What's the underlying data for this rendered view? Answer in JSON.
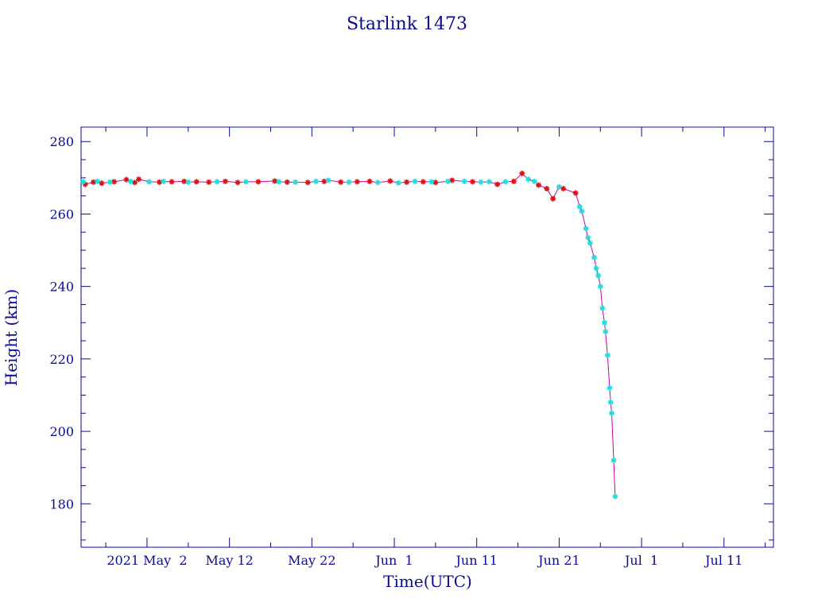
{
  "chart_data": {
    "type": "scatter",
    "title": "Starlink 1473",
    "xlabel": "Time(UTC)",
    "ylabel": "Height (km)",
    "xlim": [
      "2021-04-24",
      "2021-07-17"
    ],
    "ylim": [
      168,
      284
    ],
    "yticks": [
      180,
      200,
      220,
      240,
      260,
      280
    ],
    "xticks": [
      {
        "date": "2021-05-02",
        "label": "2021 May  2"
      },
      {
        "date": "2021-05-12",
        "label": "May 12"
      },
      {
        "date": "2021-05-22",
        "label": "May 22"
      },
      {
        "date": "2021-06-01",
        "label": "Jun  1"
      },
      {
        "date": "2021-06-11",
        "label": "Jun 11"
      },
      {
        "date": "2021-06-21",
        "label": "Jun 21"
      },
      {
        "date": "2021-07-01",
        "label": "Jul  1"
      },
      {
        "date": "2021-07-11",
        "label": "Jul 11"
      }
    ],
    "grid": false,
    "colors": {
      "axes": "#0a0a96",
      "line": "#cc00aa",
      "series_a": "#dd1111",
      "series_b": "#22dddd"
    },
    "series": [
      {
        "marker": "red-asterisk",
        "points": [
          [
            "2021-04-24T12:00",
            268.2
          ],
          [
            "2021-04-25T12:00",
            268.8
          ],
          [
            "2021-04-26T12:00",
            268.5
          ],
          [
            "2021-04-28T00:00",
            268.9
          ],
          [
            "2021-04-29T12:00",
            269.5
          ],
          [
            "2021-04-30T12:00",
            268.7
          ],
          [
            "2021-05-01T00:00",
            269.6
          ],
          [
            "2021-05-03T12:00",
            268.8
          ],
          [
            "2021-05-05T00:00",
            268.9
          ],
          [
            "2021-05-06T12:00",
            269.0
          ],
          [
            "2021-05-08T00:00",
            268.9
          ],
          [
            "2021-05-09T12:00",
            268.8
          ],
          [
            "2021-05-11T12:00",
            269.0
          ],
          [
            "2021-05-13T00:00",
            268.7
          ],
          [
            "2021-05-15T12:00",
            268.9
          ],
          [
            "2021-05-17T12:00",
            269.1
          ],
          [
            "2021-05-19T00:00",
            268.8
          ],
          [
            "2021-05-21T12:00",
            268.7
          ],
          [
            "2021-05-23T12:00",
            269.0
          ],
          [
            "2021-05-25T12:00",
            268.8
          ],
          [
            "2021-05-27T12:00",
            268.9
          ],
          [
            "2021-05-29T00:00",
            269.0
          ],
          [
            "2021-05-31T12:00",
            269.1
          ],
          [
            "2021-06-02T12:00",
            268.8
          ],
          [
            "2021-06-04T12:00",
            268.9
          ],
          [
            "2021-06-06T00:00",
            268.7
          ],
          [
            "2021-06-08T00:00",
            269.3
          ],
          [
            "2021-06-10T12:00",
            268.9
          ],
          [
            "2021-06-13T12:00",
            268.2
          ],
          [
            "2021-06-15T12:00",
            269.0
          ],
          [
            "2021-06-16T12:00",
            271.2
          ],
          [
            "2021-06-18T12:00",
            268.0
          ],
          [
            "2021-06-19T12:00",
            267.0
          ],
          [
            "2021-06-20T06:00",
            264.2
          ],
          [
            "2021-06-21T12:00",
            267.0
          ],
          [
            "2021-06-23T00:00",
            265.8
          ]
        ]
      },
      {
        "marker": "cyan-star",
        "points": [
          [
            "2021-04-24T06:00",
            268.9
          ],
          [
            "2021-04-26T00:00",
            269.0
          ],
          [
            "2021-04-27T12:00",
            268.8
          ],
          [
            "2021-04-30T00:00",
            269.0
          ],
          [
            "2021-05-02T06:00",
            268.9
          ],
          [
            "2021-05-04T00:00",
            269.0
          ],
          [
            "2021-05-07T00:00",
            268.8
          ],
          [
            "2021-05-10T12:00",
            268.9
          ],
          [
            "2021-05-14T00:00",
            268.9
          ],
          [
            "2021-05-18T00:00",
            268.9
          ],
          [
            "2021-05-20T00:00",
            268.8
          ],
          [
            "2021-05-22T12:00",
            269.0
          ],
          [
            "2021-05-24T00:00",
            269.3
          ],
          [
            "2021-05-26T12:00",
            268.8
          ],
          [
            "2021-05-30T00:00",
            268.7
          ],
          [
            "2021-06-01T12:00",
            268.6
          ],
          [
            "2021-06-03T12:00",
            269.0
          ],
          [
            "2021-06-05T12:00",
            268.9
          ],
          [
            "2021-06-07T12:00",
            269.0
          ],
          [
            "2021-06-09T12:00",
            269.0
          ],
          [
            "2021-06-11T12:00",
            268.8
          ],
          [
            "2021-06-12T12:00",
            268.9
          ],
          [
            "2021-06-14T12:00",
            268.9
          ],
          [
            "2021-06-17T06:00",
            269.6
          ],
          [
            "2021-06-18T00:00",
            269.0
          ],
          [
            "2021-06-21T00:00",
            267.5
          ],
          [
            "2021-06-23T12:00",
            262.0
          ],
          [
            "2021-06-23T18:00",
            260.8
          ],
          [
            "2021-06-24T06:00",
            256.0
          ],
          [
            "2021-06-24T12:00",
            253.5
          ],
          [
            "2021-06-24T18:00",
            252.0
          ],
          [
            "2021-06-25T06:00",
            248.0
          ],
          [
            "2021-06-25T12:00",
            245.0
          ],
          [
            "2021-06-25T18:00",
            243.0
          ],
          [
            "2021-06-26T00:00",
            240.0
          ],
          [
            "2021-06-26T06:00",
            234.0
          ],
          [
            "2021-06-26T12:00",
            230.0
          ],
          [
            "2021-06-26T15:00",
            227.5
          ],
          [
            "2021-06-26T21:00",
            221.0
          ],
          [
            "2021-06-27T03:00",
            212.0
          ],
          [
            "2021-06-27T06:00",
            208.0
          ],
          [
            "2021-06-27T09:00",
            205.0
          ],
          [
            "2021-06-27T15:00",
            192.0
          ],
          [
            "2021-06-27T19:00",
            182.0
          ]
        ]
      }
    ]
  }
}
